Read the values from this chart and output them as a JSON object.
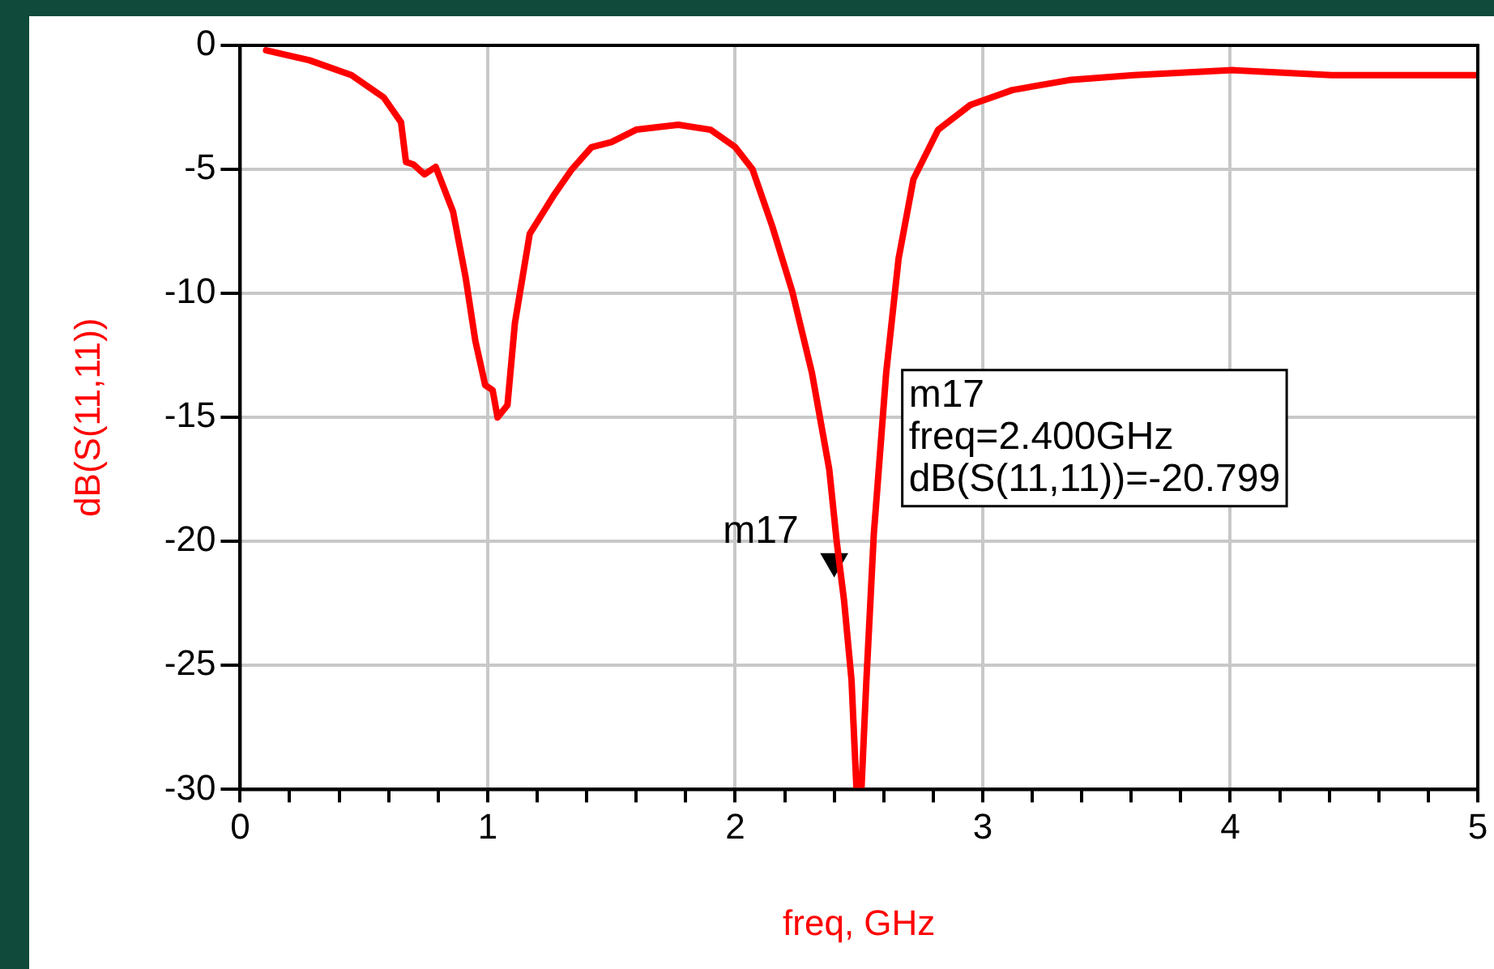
{
  "chart_data": {
    "type": "line",
    "xlabel": "freq, GHz",
    "ylabel": "dB(S(11,11))",
    "xlim": [
      0,
      5
    ],
    "ylim": [
      -30,
      0
    ],
    "xticks": [
      0,
      {
        "value": 0.2,
        "label": null
      },
      {
        "value": 0.4,
        "label": null
      },
      {
        "value": 0.6,
        "label": null
      },
      {
        "value": 0.8,
        "label": null
      },
      1,
      {
        "value": 1.2,
        "label": null
      },
      {
        "value": 1.4,
        "label": null
      },
      {
        "value": 1.6,
        "label": null
      },
      {
        "value": 1.8,
        "label": null
      },
      2,
      {
        "value": 2.2,
        "label": null
      },
      {
        "value": 2.4,
        "label": null
      },
      {
        "value": 2.6,
        "label": null
      },
      {
        "value": 2.8,
        "label": null
      },
      3,
      {
        "value": 3.2,
        "label": null
      },
      {
        "value": 3.4,
        "label": null
      },
      {
        "value": 3.6,
        "label": null
      },
      {
        "value": 3.8,
        "label": null
      },
      4,
      {
        "value": 4.2,
        "label": null
      },
      {
        "value": 4.4,
        "label": null
      },
      {
        "value": 4.6,
        "label": null
      },
      {
        "value": 4.8,
        "label": null
      },
      5
    ],
    "yticks": [
      -30,
      -25,
      -20,
      -15,
      -10,
      -5,
      0
    ],
    "grid": true,
    "legend": false,
    "series": [
      {
        "type": "line",
        "color": "#ff0000",
        "marker": "none",
        "line_style": "solid",
        "x": [
          0.105,
          0.28,
          0.45,
          0.58,
          0.65,
          0.67,
          0.7,
          0.745,
          0.79,
          0.86,
          0.91,
          0.95,
          0.99,
          1.02,
          1.04,
          1.08,
          1.11,
          1.17,
          1.27,
          1.34,
          1.42,
          1.5,
          1.6,
          1.77,
          1.9,
          2.0,
          2.07,
          2.15,
          2.23,
          2.31,
          2.38,
          2.41,
          2.44,
          2.47,
          2.49,
          2.51,
          2.53,
          2.56,
          2.61,
          2.66,
          2.72,
          2.82,
          2.95,
          3.12,
          3.35,
          3.61,
          4.01,
          4.41,
          4.8,
          5.0
        ],
        "values": [
          -0.2,
          -0.6,
          -1.2,
          -2.1,
          -3.1,
          -4.7,
          -4.8,
          -5.2,
          -4.9,
          -6.7,
          -9.3,
          -11.9,
          -13.7,
          -13.9,
          -15.0,
          -14.5,
          -11.2,
          -7.6,
          -6.0,
          -5.0,
          -4.1,
          -3.9,
          -3.4,
          -3.2,
          -3.4,
          -4.1,
          -5.0,
          -7.3,
          -9.9,
          -13.2,
          -17.1,
          -20.0,
          -22.4,
          -25.6,
          -30,
          -30,
          -25.6,
          -19.7,
          -13.2,
          -8.6,
          -5.4,
          -3.4,
          -2.4,
          -1.8,
          -1.4,
          -1.2,
          -1.0,
          -1.2,
          -1.2,
          -1.2
        ]
      },
      {
        "type": "scatter",
        "color": "#000000",
        "marker": "triangle",
        "x": [
          2.4
        ],
        "values": [
          -20.799
        ]
      }
    ],
    "annotations": [
      {
        "text": "m17",
        "x": 2.4,
        "y": -20.799
      },
      "m17\nfreq=2.400GHz\ndB(S(11,11))=-20.799"
    ]
  }
}
